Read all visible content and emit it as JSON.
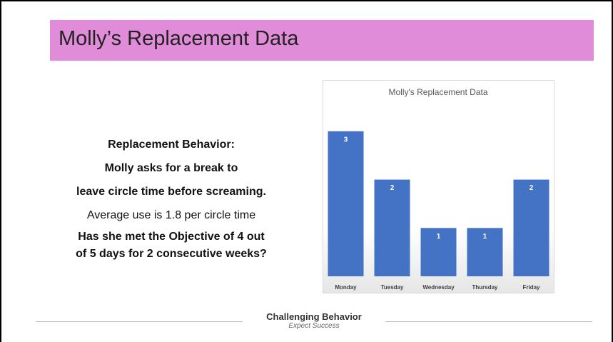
{
  "slide": {
    "title": "Molly’s Replacement Data",
    "lines": [
      "Replacement Behavior:",
      "Molly asks for a break to",
      "leave circle time before screaming.",
      "Average use is 1.8 per circle time",
      "Has she met the Objective of 4 out",
      "of 5 days for 2 consecutive weeks?"
    ],
    "footer": {
      "brand": "Challenging Behavior",
      "tagline": "Expect Success"
    }
  },
  "chart_data": {
    "type": "bar",
    "title": "Molly's Replacement Data",
    "categories": [
      "Monday",
      "Tuesday",
      "Wednesday",
      "Thursday",
      "Friday"
    ],
    "values": [
      3,
      2,
      1,
      1,
      2
    ],
    "color": "#4472c4",
    "ylim": [
      0,
      3.5
    ]
  }
}
